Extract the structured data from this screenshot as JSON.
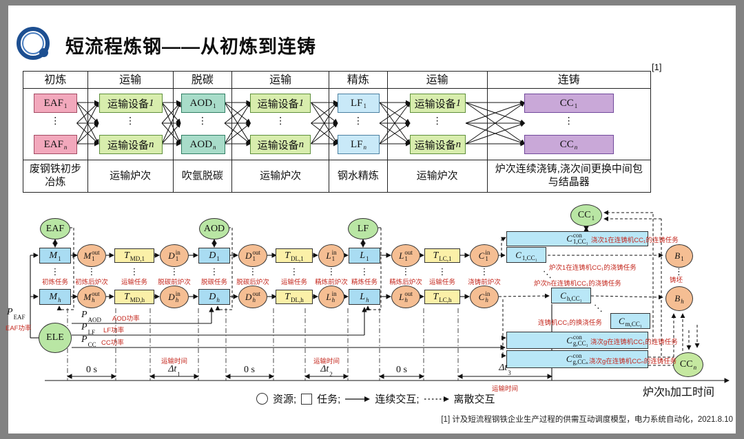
{
  "slide": {
    "title": "短流程炼钢——从初炼到连铸",
    "ref_marker": "[1]",
    "footnote": "[1] 计及短流程钢铁企业生产过程的供需互动调度模型，电力系统自动化，2021.8.10"
  },
  "table": {
    "headers": [
      "初炼",
      "运输",
      "脱碳",
      "运输",
      "精炼",
      "运输",
      "连铸"
    ],
    "descs": [
      "废钢铁初步冶炼",
      "运输炉次",
      "吹氩脱碳",
      "运输炉次",
      "钢水精炼",
      "运输炉次",
      "炉次连续浇铸,浇次间更换中间包与结晶器"
    ],
    "dots": "⋮",
    "cols": [
      {
        "top": {
          "base": "EAF",
          "sub": "1"
        },
        "bot": {
          "base": "EAF",
          "sub": "n"
        }
      },
      {
        "top": {
          "base": "运输设备",
          "tail": "1"
        },
        "bot": {
          "base": "运输设备",
          "tail": "n"
        }
      },
      {
        "top": {
          "base": "AOD",
          "sub": "1"
        },
        "bot": {
          "base": "AOD",
          "sub": "n"
        }
      },
      {
        "top": {
          "base": "运输设备",
          "tail": "1"
        },
        "bot": {
          "base": "运输设备",
          "tail": "n"
        }
      },
      {
        "top": {
          "base": "LF",
          "sub": "1"
        },
        "bot": {
          "base": "LF",
          "sub": "n"
        }
      },
      {
        "top": {
          "base": "运输设备",
          "tail": "1"
        },
        "bot": {
          "base": "运输设备",
          "tail": "n"
        }
      },
      {
        "top": {
          "base": "CC",
          "sub": "1"
        },
        "bot": {
          "base": "CC",
          "sub": "n"
        }
      }
    ]
  },
  "resources": {
    "eaf": "EAF",
    "aod": "AOD",
    "lf": "LF",
    "ele": "ELE",
    "cc1": {
      "base": "CC",
      "sub": "1"
    },
    "ccn": {
      "base": "CC",
      "sub": "n"
    }
  },
  "flow": {
    "r1": {
      "m": {
        "base": "M",
        "sub": "1"
      },
      "mout": {
        "base": "M",
        "sub": "1",
        "sup": "out"
      },
      "tmd": {
        "base": "T",
        "sub": "MD,1"
      },
      "din": {
        "base": "D",
        "sub": "1",
        "sup": "in"
      },
      "d": {
        "base": "D",
        "sub": "1"
      },
      "dout": {
        "base": "D",
        "sub": "1",
        "sup": "out"
      },
      "tdl": {
        "base": "T",
        "sub": "DL,1"
      },
      "lin": {
        "base": "L",
        "sub": "1",
        "sup": "in"
      },
      "l": {
        "base": "L",
        "sub": "1"
      },
      "lout": {
        "base": "L",
        "sub": "1",
        "sup": "out"
      },
      "tlc": {
        "base": "T",
        "sub": "LC,1"
      },
      "cin": {
        "base": "C",
        "sub": "1",
        "sup": "in"
      }
    },
    "rh": {
      "m": {
        "base": "M",
        "sub": "h"
      },
      "mout": {
        "base": "M",
        "sub": "h",
        "sup": "out"
      },
      "tmd": {
        "base": "T",
        "sub": "MD,h"
      },
      "din": {
        "base": "D",
        "sub": "h",
        "sup": "in"
      },
      "d": {
        "base": "D",
        "sub": "h"
      },
      "dout": {
        "base": "D",
        "sub": "h",
        "sup": "out"
      },
      "tdl": {
        "base": "T",
        "sub": "DL,h"
      },
      "lin": {
        "base": "L",
        "sub": "h",
        "sup": "in"
      },
      "l": {
        "base": "L",
        "sub": "h"
      },
      "lout": {
        "base": "L",
        "sub": "h",
        "sup": "out"
      },
      "tlc": {
        "base": "T",
        "sub": "LC,h"
      },
      "cin": {
        "base": "C",
        "sub": "h",
        "sup": "in"
      }
    }
  },
  "task_labels": [
    "初炼任务",
    "初炼后炉次",
    "运输任务",
    "脱碳前炉次",
    "脱碳任务",
    "脱碳后炉次",
    "运输任务",
    "精炼前炉次",
    "精炼任务",
    "精炼后炉次",
    "运输任务",
    "浇铸前炉次"
  ],
  "cast": {
    "con1": {
      "base": "C",
      "sub": "1,CC₁",
      "sup": "con"
    },
    "con1_note": "浇次1在连铸机CC₁的连铸任务",
    "c1": {
      "base": "C",
      "sub": "1,CC₁"
    },
    "c1_note": "炉次1在连铸机CC₁的浇铸任务",
    "ch_note": "炉次h在连铸机CC₁的浇铸任务",
    "ch": {
      "base": "C",
      "sub": "h,CC₁"
    },
    "swap_note": "连铸机CC₁的换浇任务",
    "cm": {
      "base": "C",
      "sub": "m,CC₁"
    },
    "cong1": {
      "base": "C",
      "sub": "g,CC₁",
      "sup": "con"
    },
    "cong1_note": "浇次g在连铸机CC₁的连铸任务",
    "congn": {
      "base": "C",
      "sub": "g,CCₙ",
      "sup": "con"
    },
    "congn_note": "浇次g在连铸机CCₙ的连铸任务",
    "b1": {
      "base": "B",
      "sub": "1"
    },
    "bh": {
      "base": "B",
      "sub": "h"
    },
    "billet": "铸坯",
    "dots_diag": "⋱",
    "dots_v": "⋮"
  },
  "power": {
    "peaf": {
      "base": "P",
      "sub": "EAF"
    },
    "peaf_note": "EAF功率",
    "paod": {
      "base": "P",
      "sub": "AOD"
    },
    "paod_note": "AOD功率",
    "plf": {
      "base": "P",
      "sub": "LF"
    },
    "plf_note": "LF功率",
    "pcc": {
      "base": "P",
      "sub": "CC"
    },
    "pcc_note": "CC功率"
  },
  "timeline": {
    "zero": "0 s",
    "transport": "运输时间",
    "dt1": {
      "base": "Δt",
      "sub": "1"
    },
    "dt2": {
      "base": "Δt",
      "sub": "2"
    },
    "dt3": {
      "base": "Δt",
      "sub": "3"
    },
    "axis": "炉次h加工时间"
  },
  "legend": {
    "resource": "资源;",
    "task": "任务;",
    "continuous": "连续交互;",
    "discrete": "离散交互"
  },
  "colors": {
    "pink": "#F2A8BC",
    "green": "#D8EDAD",
    "teal": "#A8DCC9",
    "blue": "#C9E9F8",
    "purple": "#C9A8D8",
    "node_blue": "#A9DCF2",
    "node_yellow": "#FBF0A8",
    "node_orange": "#F5BE93",
    "node_green": "#B9E6A4",
    "cyan": "#B9E7F7",
    "red_label": "#C4271D"
  }
}
